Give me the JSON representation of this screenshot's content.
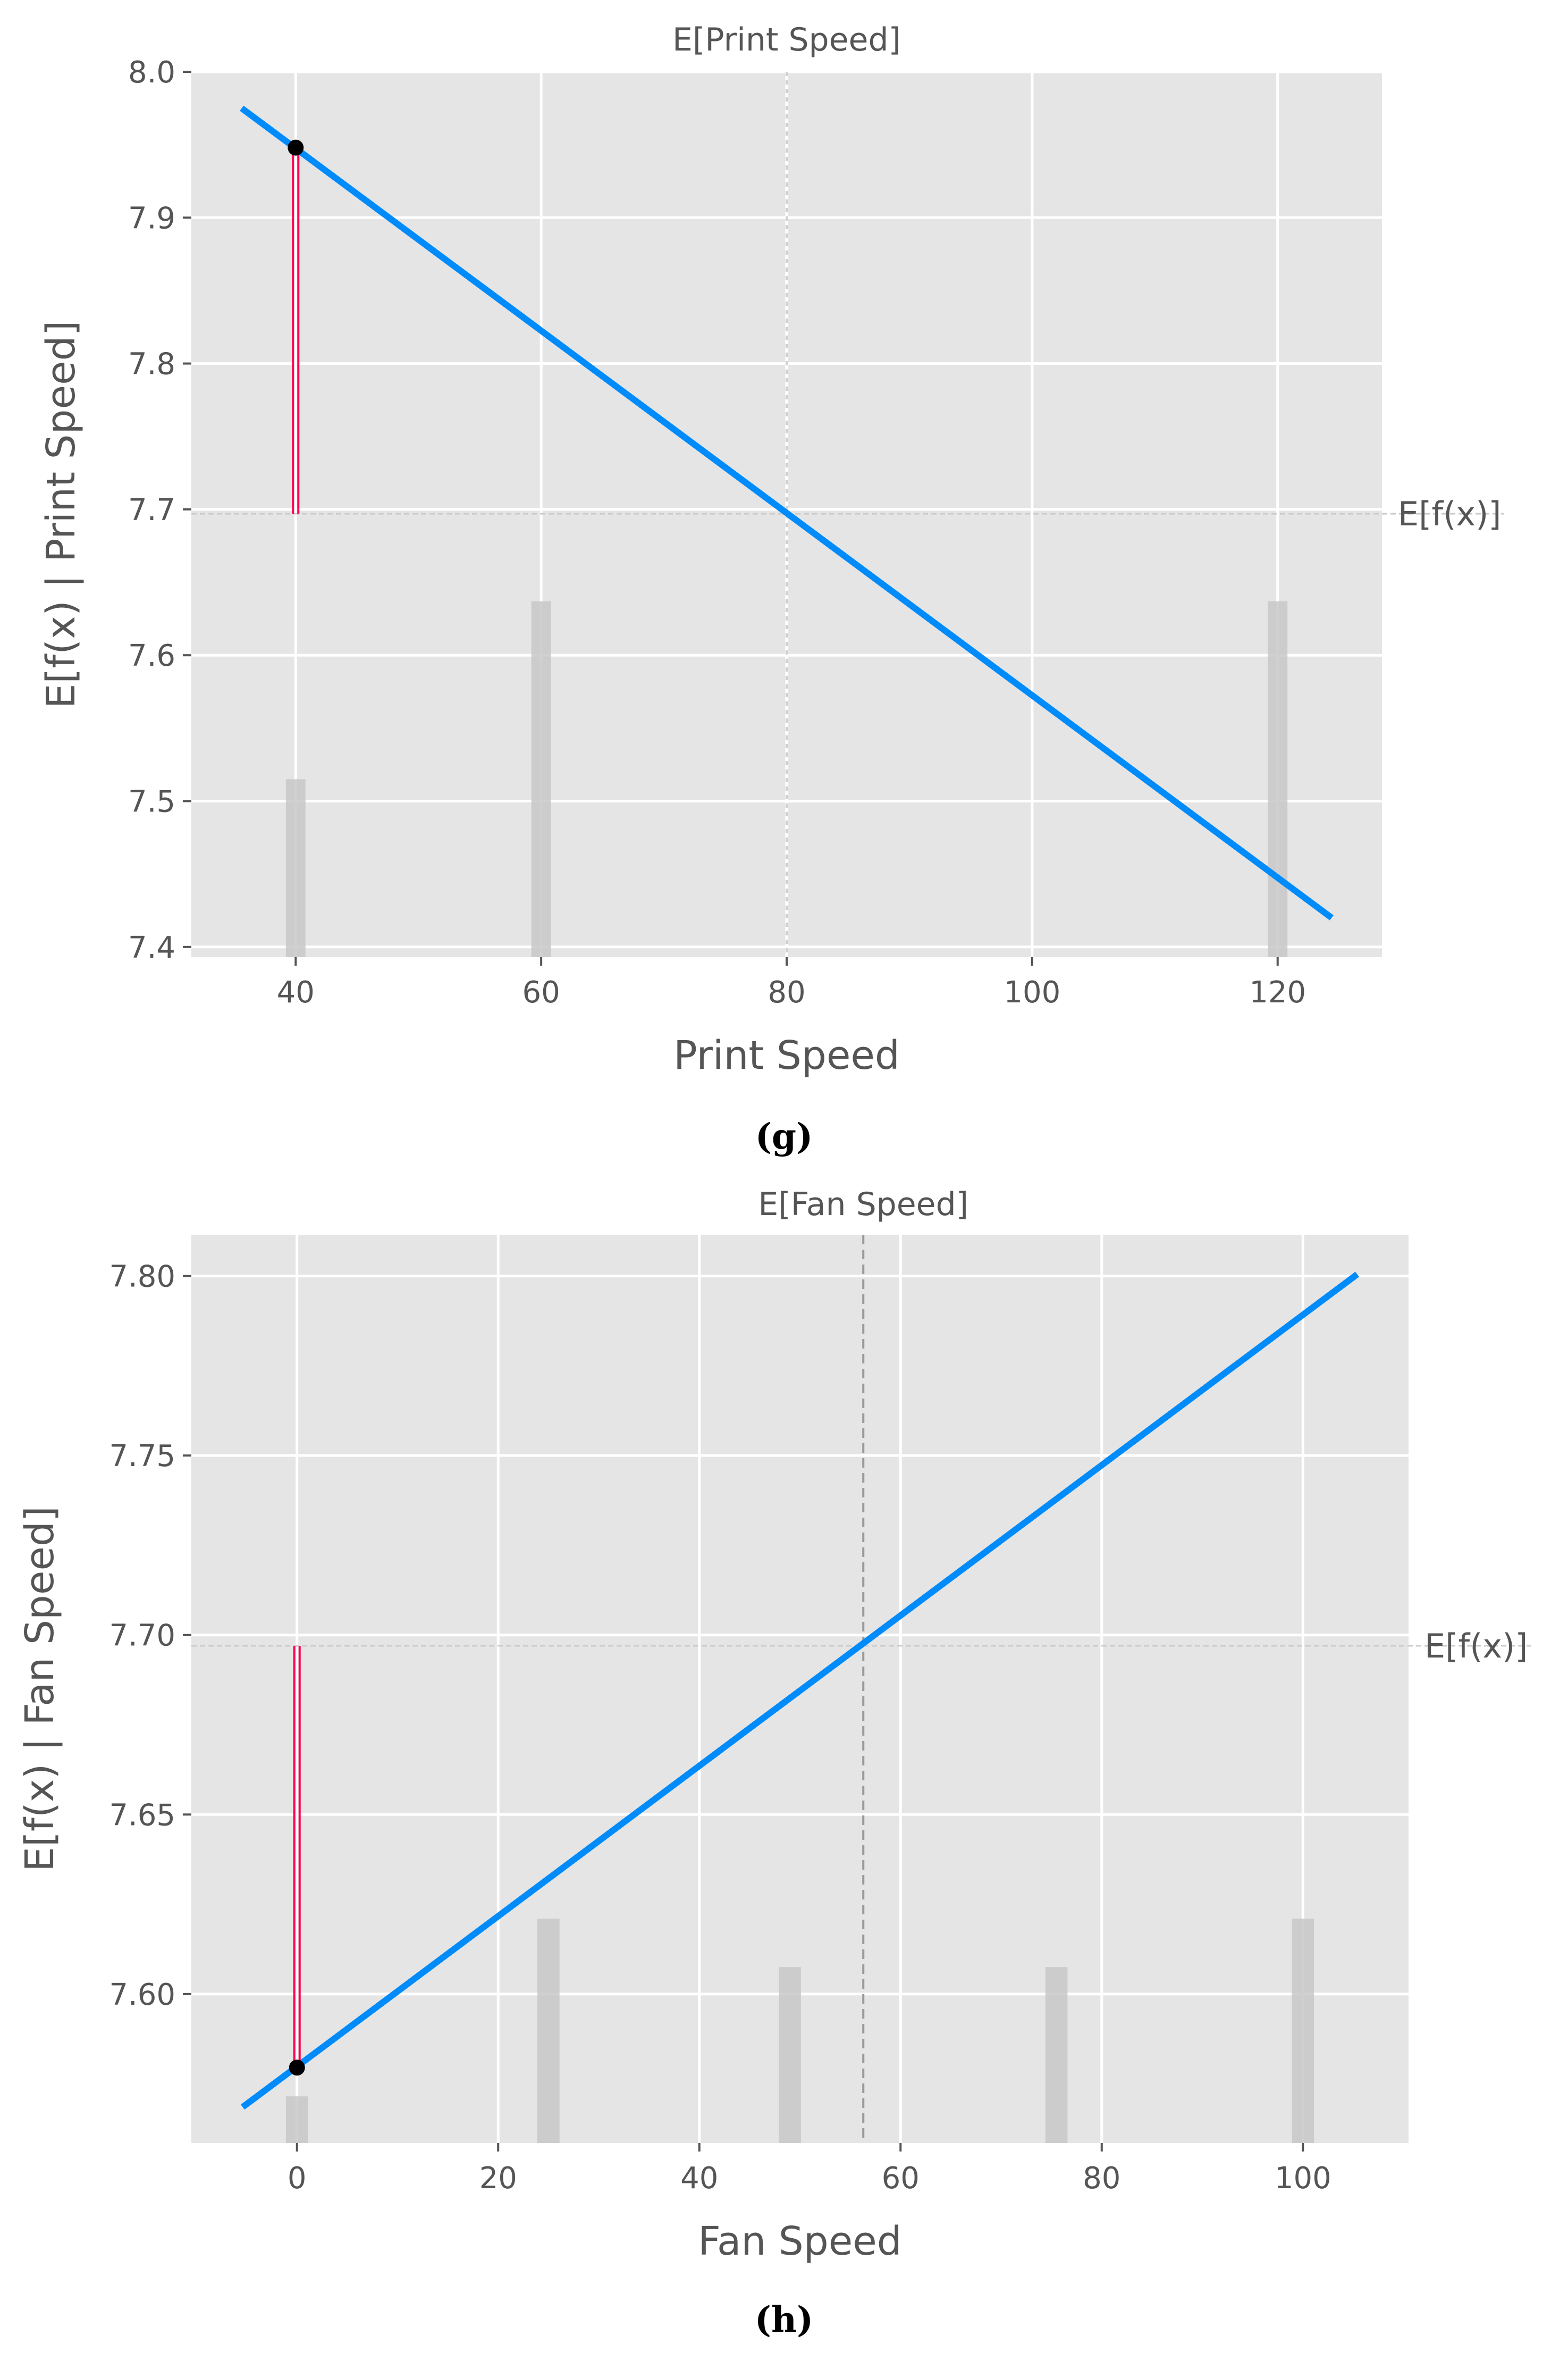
{
  "colors": {
    "panel_bg": "#e5e5e5",
    "grid": "#ffffff",
    "line": "#008bfb",
    "bar": "#c8c8c8",
    "stem": "#ff0051",
    "point": "#000000",
    "mean_line": "#999999"
  },
  "chart_data": [
    {
      "type": "line",
      "title": "E[Print Speed]",
      "xlabel": "Print Speed",
      "ylabel": "E[f(x) | Print Speed]",
      "panel_label": "(g)",
      "ref_label": "E[f(x)]",
      "xlim": [
        31.5,
        128.5
      ],
      "ylim": [
        7.393,
        8.0
      ],
      "xticks": [
        40,
        60,
        80,
        100,
        120
      ],
      "xtick_labels": [
        "40",
        "60",
        "80",
        "100",
        "120"
      ],
      "yticks": [
        7.4,
        7.5,
        7.6,
        7.7,
        7.8,
        7.9,
        8.0
      ],
      "ytick_labels": [
        "7.4",
        "7.5",
        "7.6",
        "7.7",
        "7.8",
        "7.9",
        "8.0"
      ],
      "grid": true,
      "series": [
        {
          "x": [
            35.6,
            124.4
          ],
          "y": [
            7.975,
            7.42
          ]
        }
      ],
      "expected_value": 7.697,
      "expected_feature_value": 80,
      "sample": {
        "x": 40,
        "y": 7.948
      },
      "histogram": [
        {
          "x": 40,
          "height": 7.515
        },
        {
          "x": 60,
          "height": 7.637
        },
        {
          "x": 120,
          "height": 7.637
        }
      ],
      "bar_width": 1.6,
      "mean_line_style": "dotted"
    },
    {
      "type": "line",
      "title": "E[Fan Speed]",
      "xlabel": "Fan Speed",
      "ylabel": "E[f(x) | Fan Speed]",
      "panel_label": "(h)",
      "ref_label": "E[f(x)]",
      "xlim": [
        -10.5,
        110.5
      ],
      "ylim": [
        7.5585,
        7.8115
      ],
      "xticks": [
        0,
        20,
        40,
        60,
        80,
        100
      ],
      "xtick_labels": [
        "0",
        "20",
        "40",
        "60",
        "80",
        "100"
      ],
      "yticks": [
        7.6,
        7.65,
        7.7,
        7.75,
        7.8
      ],
      "ytick_labels": [
        "7.60",
        "7.65",
        "7.70",
        "7.75",
        "7.80"
      ],
      "grid": true,
      "series": [
        {
          "x": [
            -5.4,
            105.4
          ],
          "y": [
            7.5685,
            7.8005
          ]
        }
      ],
      "expected_value": 7.697,
      "expected_feature_value": 56.3,
      "sample": {
        "x": 0,
        "y": 7.5795
      },
      "histogram": [
        {
          "x": 0,
          "height": 7.5715
        },
        {
          "x": 25,
          "height": 7.621
        },
        {
          "x": 49,
          "height": 7.6075
        },
        {
          "x": 75.5,
          "height": 7.6075
        },
        {
          "x": 100,
          "height": 7.621
        }
      ],
      "bar_width": 2.2,
      "mean_line_style": "dashed"
    }
  ]
}
